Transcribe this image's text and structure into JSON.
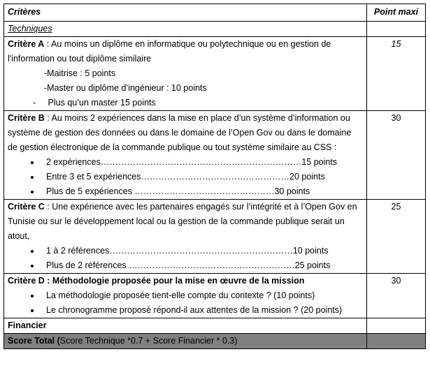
{
  "header": {
    "criteria": "Critères",
    "points": "Point maxi"
  },
  "techniques": "Techniques",
  "criteria": [
    {
      "label": "Critère A",
      "text": " : Au moins un diplôme en informatique ou polytechnique  ou en gestion de l'information ou tout diplôme similaire",
      "items": [
        "-Maitrise : 5 points",
        "-Master ou diplôme d’ingénieur : 10 points"
      ],
      "dash_item": "-     Plus qu’un master 15 points",
      "points": "15"
    },
    {
      "label": "Critère B",
      "text": " : Au moins 2 expériences dans la mise en place d’un système d’information ou système de gestion des données ou dans le domaine de l’Open Gov ou dans le domaine de gestion électronique de la commande publique ou tout système similaire au CSS :",
      "items": [
        "2 expériences……………………………………………………………15 points",
        "Entre 3 et 5 expériences……………………………………………20 points",
        "Plus de 5 expériences …………………………………………30 points"
      ],
      "points": "30"
    },
    {
      "label": "Critère C",
      "text": " : Une expérience avec les partenaires engagés sur l’intégrité et à l’Open Gov en Tunisie ou sur le développement local ou la gestion de la commande publique serait un atout,",
      "items": [
        "1 à 2 références………………………………………………………10 points",
        "Plus de 2 références …………………………………………………25 points"
      ],
      "points": "25"
    },
    {
      "label": "Critère D : Méthodologie proposée pour la mise en œuvre de la mission",
      "text": "",
      "items": [
        "La méthodologie proposée tient-elle compte du contexte ? (10 points)",
        "Le chronogramme proposé répond-il aux attentes de la mission ? (20 points)"
      ],
      "points": "30"
    }
  ],
  "financier": "Financier",
  "total": {
    "label": "Score Total (",
    "formula": "Score Technique *0.7 + Score Financier * 0.3)"
  }
}
